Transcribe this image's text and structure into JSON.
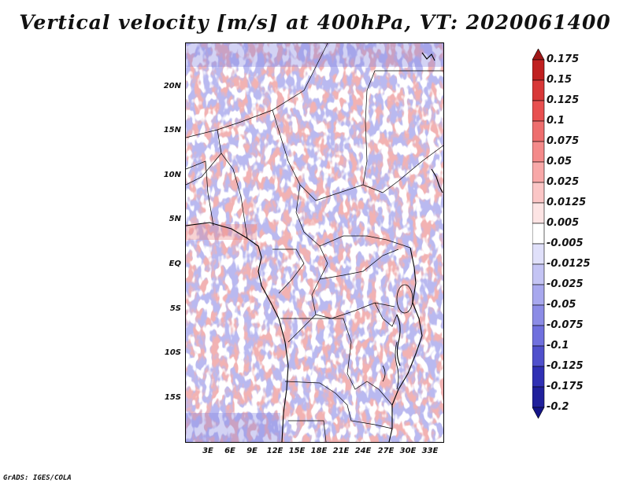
{
  "title": "Vertical velocity [m/s] at 400hPa, VT: 2020061400",
  "footer": "GrADS: IGES/COLA",
  "map": {
    "variable": "Vertical velocity",
    "units": "m/s",
    "level": "400hPa",
    "valid_time": "2020061400",
    "lat_labels": [
      "20N",
      "15N",
      "10N",
      "5N",
      "EQ",
      "5S",
      "10S",
      "15S"
    ],
    "lon_labels": [
      "3E",
      "6E",
      "9E",
      "12E",
      "15E",
      "18E",
      "21E",
      "24E",
      "27E",
      "30E",
      "33E"
    ]
  },
  "colorbar": {
    "labels": [
      "0.175",
      "0.15",
      "0.125",
      "0.1",
      "0.075",
      "0.05",
      "0.025",
      "0.0125",
      "0.005",
      "-0.005",
      "-0.0125",
      "-0.025",
      "-0.05",
      "-0.075",
      "-0.1",
      "-0.125",
      "-0.175",
      "-0.2"
    ],
    "colors": [
      "#a01818",
      "#c02020",
      "#d83838",
      "#e85050",
      "#ee6e6e",
      "#f48a8a",
      "#f8a8a8",
      "#fbc6c6",
      "#fde4e4",
      "#ffffff",
      "#e0e0fa",
      "#c4c4f4",
      "#a8a8ee",
      "#8c8ce6",
      "#7070de",
      "#5050cc",
      "#3030b4",
      "#20209c",
      "#141488"
    ]
  }
}
